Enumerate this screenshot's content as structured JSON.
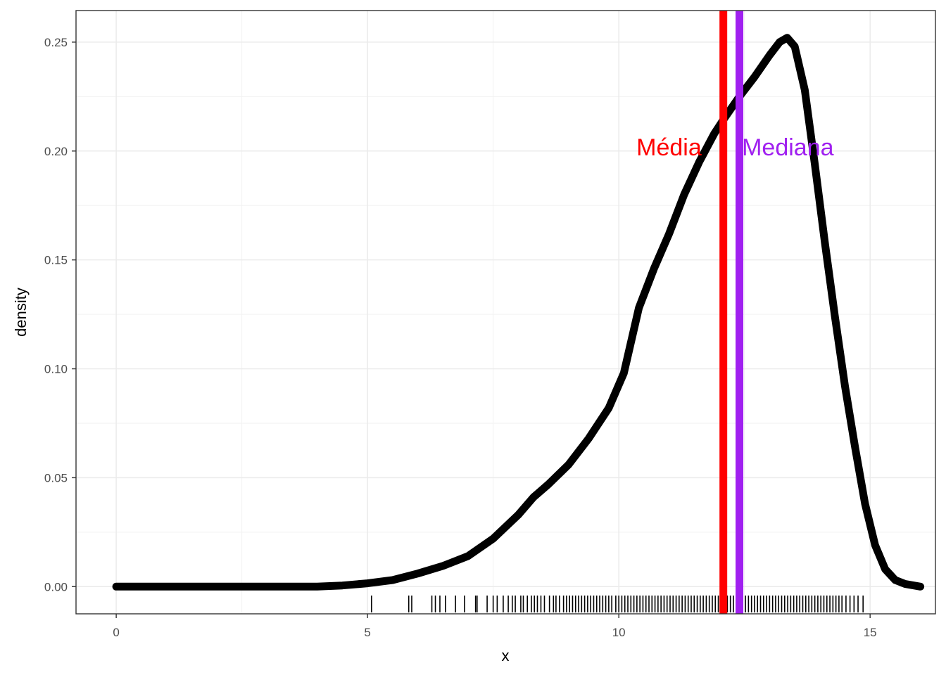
{
  "chart_data": {
    "type": "line",
    "xlabel": "x",
    "ylabel": "density",
    "xlim": [
      -0.8,
      16.3
    ],
    "ylim": [
      -0.0125,
      0.2645
    ],
    "x_ticks": [
      {
        "value": 0,
        "label": "0"
      },
      {
        "value": 5,
        "label": "5"
      },
      {
        "value": 10,
        "label": "10"
      },
      {
        "value": 15,
        "label": "15"
      }
    ],
    "y_ticks": [
      {
        "value": 0,
        "label": "0.00"
      },
      {
        "value": 0.05,
        "label": "0.05"
      },
      {
        "value": 0.1,
        "label": "0.10"
      },
      {
        "value": 0.15,
        "label": "0.15"
      },
      {
        "value": 0.2,
        "label": "0.20"
      },
      {
        "value": 0.25,
        "label": "0.25"
      }
    ],
    "grid": true,
    "series": [
      {
        "color": "#000000",
        "x": [
          0,
          1,
          2,
          3,
          4,
          4.5,
          5,
          5.5,
          6,
          6.5,
          7,
          7.5,
          8,
          8.3,
          8.6,
          9,
          9.4,
          9.8,
          10.1,
          10.4,
          10.7,
          11,
          11.3,
          11.6,
          11.9,
          12.1,
          12.4,
          12.7,
          13,
          13.2,
          13.35,
          13.5,
          13.7,
          13.9,
          14.1,
          14.3,
          14.5,
          14.7,
          14.9,
          15.1,
          15.3,
          15.5,
          15.7,
          16
        ],
        "y": [
          0,
          0,
          0,
          0,
          0,
          0.0005,
          0.0015,
          0.003,
          0.006,
          0.0095,
          0.014,
          0.022,
          0.033,
          0.041,
          0.047,
          0.056,
          0.068,
          0.082,
          0.098,
          0.128,
          0.146,
          0.162,
          0.18,
          0.195,
          0.208,
          0.215,
          0.225,
          0.234,
          0.244,
          0.25,
          0.252,
          0.248,
          0.228,
          0.194,
          0.158,
          0.124,
          0.092,
          0.064,
          0.038,
          0.019,
          0.008,
          0.003,
          0.0012,
          0
        ]
      }
    ],
    "vlines": [
      {
        "x": 12.08,
        "color": "#ff0000"
      },
      {
        "x": 12.4,
        "color": "#a020f0"
      }
    ],
    "annotations": [
      {
        "text": "Média",
        "x": 10.35,
        "y": 0.198,
        "color": "#ff0000",
        "anchor": "start"
      },
      {
        "text": "Mediana",
        "x": 12.45,
        "y": 0.198,
        "color": "#a020f0",
        "anchor": "start"
      }
    ],
    "rug": [
      5.08,
      5.82,
      5.88,
      6.28,
      6.35,
      6.44,
      6.55,
      6.75,
      6.93,
      7.15,
      7.18,
      7.38,
      7.5,
      7.58,
      7.7,
      7.8,
      7.88,
      7.94,
      8.05,
      8.1,
      8.18,
      8.26,
      8.32,
      8.38,
      8.45,
      8.52,
      8.62,
      8.7,
      8.75,
      8.82,
      8.9,
      8.96,
      9.02,
      9.08,
      9.14,
      9.2,
      9.26,
      9.32,
      9.38,
      9.44,
      9.5,
      9.56,
      9.62,
      9.68,
      9.74,
      9.8,
      9.86,
      9.94,
      10.0,
      10.06,
      10.12,
      10.18,
      10.24,
      10.3,
      10.36,
      10.42,
      10.48,
      10.54,
      10.6,
      10.66,
      10.72,
      10.78,
      10.84,
      10.9,
      10.96,
      11.02,
      11.08,
      11.14,
      11.2,
      11.26,
      11.32,
      11.38,
      11.44,
      11.5,
      11.56,
      11.62,
      11.68,
      11.74,
      11.8,
      11.86,
      11.92,
      11.98,
      12.04,
      12.1,
      12.16,
      12.22,
      12.28,
      12.34,
      12.4,
      12.46,
      12.52,
      12.58,
      12.64,
      12.7,
      12.76,
      12.82,
      12.88,
      12.94,
      13.0,
      13.06,
      13.12,
      13.18,
      13.24,
      13.3,
      13.36,
      13.42,
      13.48,
      13.54,
      13.6,
      13.66,
      13.72,
      13.78,
      13.84,
      13.9,
      13.96,
      14.02,
      14.08,
      14.14,
      14.2,
      14.26,
      14.32,
      14.38,
      14.44,
      14.52,
      14.6,
      14.68,
      14.76,
      14.86
    ]
  }
}
